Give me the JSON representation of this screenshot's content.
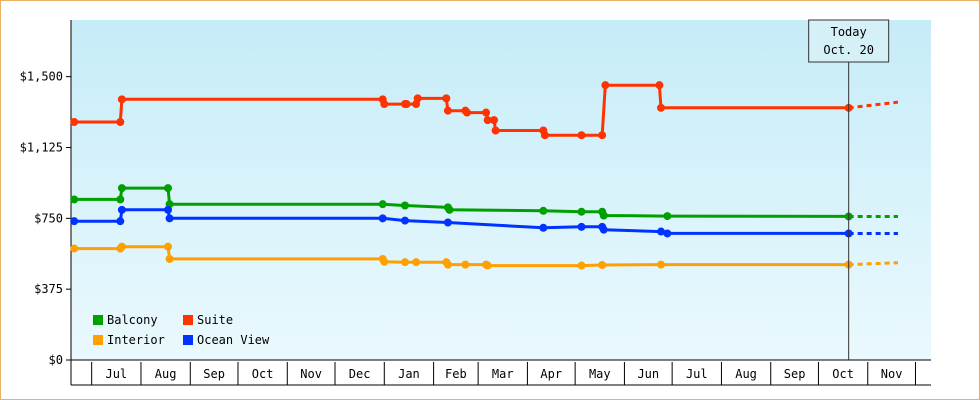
{
  "chart_data": {
    "type": "line",
    "step": true,
    "x_axis": {
      "tick_labels": [
        "Jul",
        "Aug",
        "Sep",
        "Oct",
        "Nov",
        "Dec",
        "Jan",
        "Feb",
        "Mar",
        "Apr",
        "May",
        "Jun",
        "Jul",
        "Aug",
        "Sep",
        "Oct",
        "Nov"
      ]
    },
    "y_axis": {
      "range": [
        0,
        1800
      ],
      "ticks": [
        0,
        375,
        750,
        1125,
        1500
      ],
      "tick_labels": [
        "$0",
        "$375",
        "$750",
        "$1,125",
        "$1,500"
      ]
    },
    "today_marker": {
      "line1": "Today",
      "line2": "Oct. 20",
      "date": "2023-10-20"
    },
    "legend": {
      "placement": "bottom-left"
    },
    "series": [
      {
        "name": "Suite",
        "color": "#ff3300",
        "points": [
          [
            "2022-06-20",
            1260
          ],
          [
            "2022-07-19",
            1260
          ],
          [
            "2022-07-20",
            1380
          ],
          [
            "2022-12-31",
            1380
          ],
          [
            "2023-01-01",
            1355
          ],
          [
            "2023-01-14",
            1355
          ],
          [
            "2023-01-15",
            1355
          ],
          [
            "2023-01-21",
            1355
          ],
          [
            "2023-01-22",
            1385
          ],
          [
            "2023-02-09",
            1385
          ],
          [
            "2023-02-10",
            1320
          ],
          [
            "2023-02-21",
            1320
          ],
          [
            "2023-02-22",
            1310
          ],
          [
            "2023-03-06",
            1310
          ],
          [
            "2023-03-07",
            1270
          ],
          [
            "2023-03-11",
            1270
          ],
          [
            "2023-03-12",
            1215
          ],
          [
            "2023-04-11",
            1215
          ],
          [
            "2023-04-12",
            1190
          ],
          [
            "2023-05-05",
            1190
          ],
          [
            "2023-05-18",
            1190
          ],
          [
            "2023-05-20",
            1455
          ],
          [
            "2023-06-23",
            1455
          ],
          [
            "2023-06-24",
            1335
          ],
          [
            "2023-10-20",
            1335
          ]
        ],
        "forecast": [
          [
            "2023-10-20",
            1335
          ],
          [
            "2023-11-20",
            1365
          ]
        ]
      },
      {
        "name": "Balcony",
        "color": "#00a000",
        "points": [
          [
            "2022-06-20",
            850
          ],
          [
            "2022-07-19",
            850
          ],
          [
            "2022-07-20",
            910
          ],
          [
            "2022-08-18",
            910
          ],
          [
            "2022-08-19",
            825
          ],
          [
            "2022-12-31",
            825
          ],
          [
            "2023-01-14",
            818
          ],
          [
            "2023-02-10",
            808
          ],
          [
            "2023-02-11",
            795
          ],
          [
            "2023-04-11",
            790
          ],
          [
            "2023-05-05",
            785
          ],
          [
            "2023-05-18",
            785
          ],
          [
            "2023-05-19",
            765
          ],
          [
            "2023-06-28",
            762
          ],
          [
            "2023-10-20",
            760
          ]
        ],
        "forecast": [
          [
            "2023-10-20",
            760
          ],
          [
            "2023-11-20",
            760
          ]
        ]
      },
      {
        "name": "Ocean View",
        "color": "#0033ff",
        "points": [
          [
            "2022-06-20",
            735
          ],
          [
            "2022-07-19",
            735
          ],
          [
            "2022-07-20",
            795
          ],
          [
            "2022-08-18",
            795
          ],
          [
            "2022-08-19",
            750
          ],
          [
            "2022-12-31",
            750
          ],
          [
            "2023-01-14",
            738
          ],
          [
            "2023-02-10",
            728
          ],
          [
            "2023-04-11",
            700
          ],
          [
            "2023-05-05",
            705
          ],
          [
            "2023-05-18",
            705
          ],
          [
            "2023-05-19",
            690
          ],
          [
            "2023-06-24",
            680
          ],
          [
            "2023-06-28",
            670
          ],
          [
            "2023-10-20",
            670
          ]
        ],
        "forecast": [
          [
            "2023-10-20",
            670
          ],
          [
            "2023-11-20",
            670
          ]
        ]
      },
      {
        "name": "Interior",
        "color": "#ffa000",
        "points": [
          [
            "2022-06-20",
            590
          ],
          [
            "2022-07-19",
            590
          ],
          [
            "2022-07-20",
            600
          ],
          [
            "2022-08-18",
            600
          ],
          [
            "2022-08-19",
            535
          ],
          [
            "2022-12-31",
            535
          ],
          [
            "2023-01-01",
            520
          ],
          [
            "2023-01-14",
            518
          ],
          [
            "2023-01-21",
            518
          ],
          [
            "2023-02-09",
            518
          ],
          [
            "2023-02-10",
            505
          ],
          [
            "2023-02-21",
            505
          ],
          [
            "2023-03-06",
            505
          ],
          [
            "2023-03-07",
            500
          ],
          [
            "2023-05-05",
            500
          ],
          [
            "2023-05-18",
            503
          ],
          [
            "2023-06-24",
            505
          ],
          [
            "2023-10-20",
            505
          ]
        ],
        "forecast": [
          [
            "2023-10-20",
            505
          ],
          [
            "2023-11-20",
            515
          ]
        ]
      }
    ]
  }
}
